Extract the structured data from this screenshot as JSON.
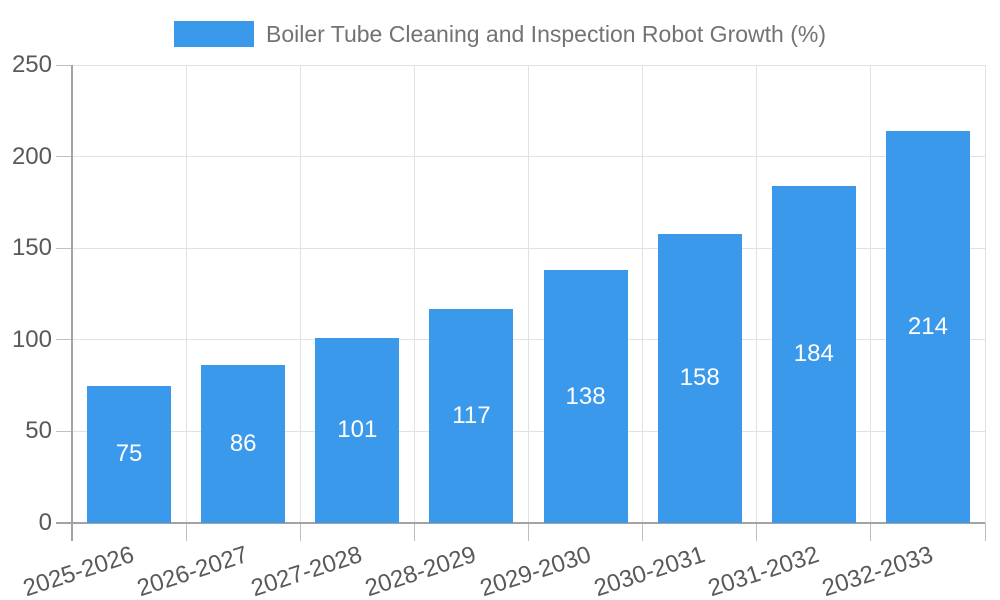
{
  "chart_data": {
    "type": "bar",
    "title": "Boiler Tube Cleaning and Inspection Robot Growth (%)",
    "legend": "Boiler Tube Cleaning and Inspection Robot Growth (%)",
    "legend_position": "top-center",
    "categories": [
      "2025-2026",
      "2026-2027",
      "2027-2028",
      "2028-2029",
      "2029-2030",
      "2030-2031",
      "2031-2032",
      "2032-2033"
    ],
    "values": [
      75,
      86,
      101,
      117,
      138,
      158,
      184,
      214
    ],
    "xlabel": "",
    "ylabel": "",
    "ylim": [
      0,
      250
    ],
    "yticks": [
      0,
      50,
      100,
      150,
      200,
      250
    ],
    "grid": true,
    "x_tick_label_rotation_deg": -18,
    "colors": {
      "bar": "#3b99ec",
      "value_label": "#ffffff",
      "grid": "#e2e2e2",
      "axis": "#a3a3a3",
      "tick_mark": "#bfbfbf",
      "tick_label": "#595959",
      "legend_text": "#737373",
      "background": "#ffffff"
    }
  }
}
